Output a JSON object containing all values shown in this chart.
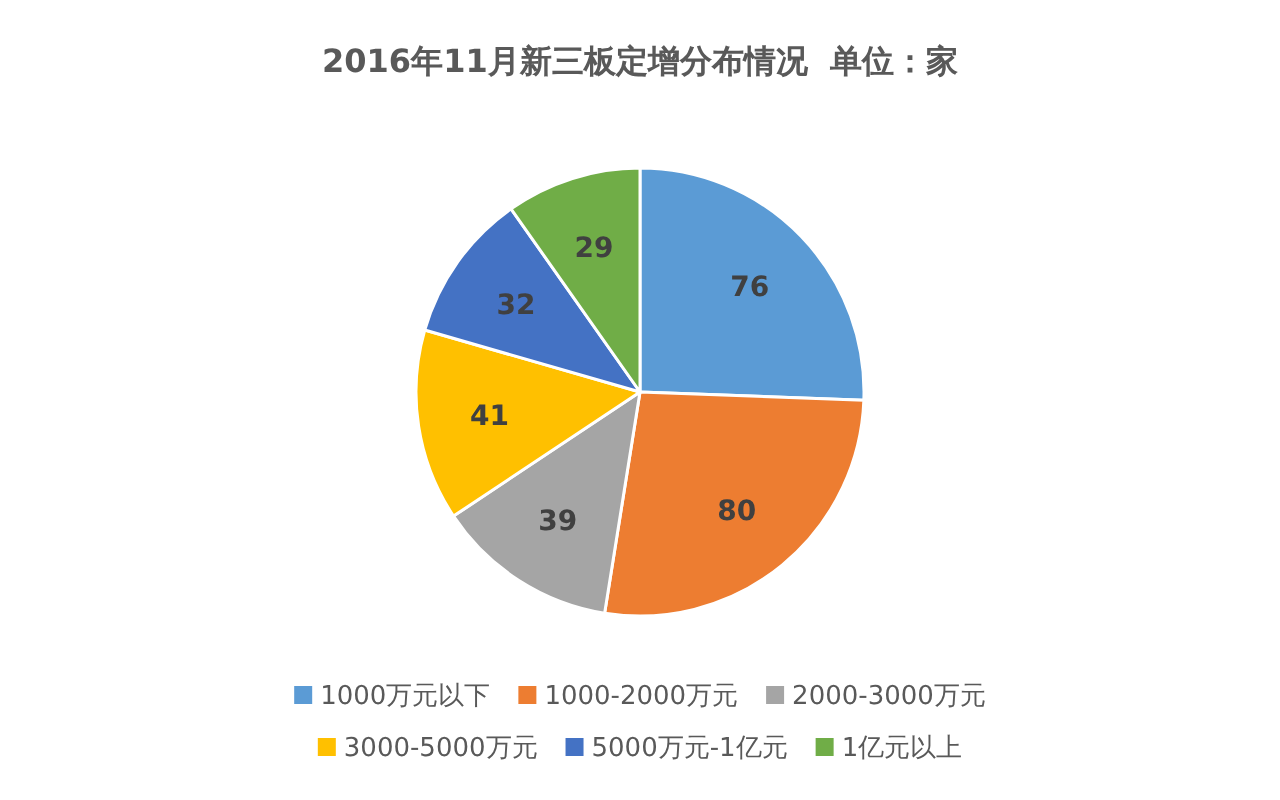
{
  "chart_data": {
    "type": "pie",
    "title": "2016年11月新三板定增分布情况  单位：家",
    "categories": [
      "1000万元以下",
      "1000-2000万元",
      "2000-3000万元",
      "3000-5000万元",
      "5000万元-1亿元",
      "1亿元以上"
    ],
    "values": [
      76,
      80,
      39,
      41,
      32,
      29
    ],
    "colors": [
      "#5b9bd5",
      "#ed7d31",
      "#a5a5a5",
      "#ffc000",
      "#4472c4",
      "#70ad47"
    ],
    "data_labels": true,
    "legend": "bottom"
  }
}
